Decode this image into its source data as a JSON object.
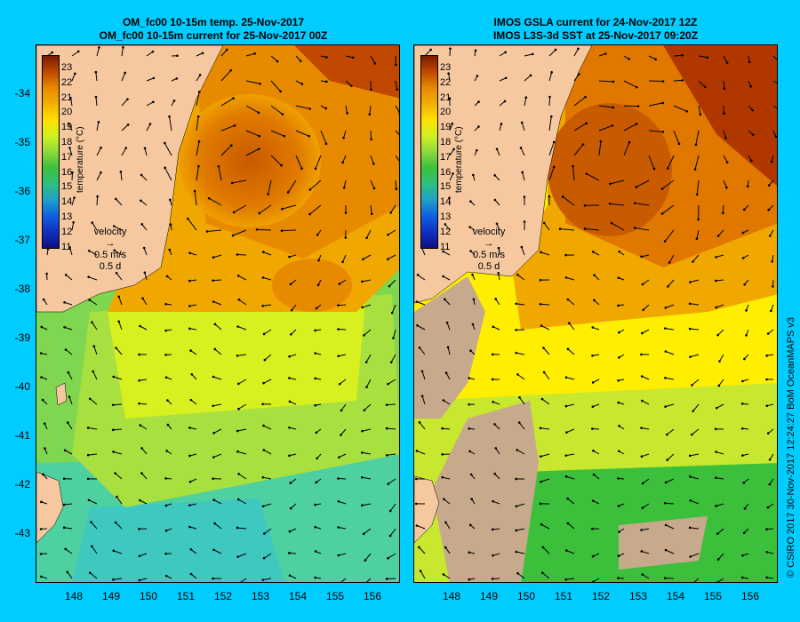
{
  "left_panel": {
    "title_line1": "OM_fc00 10-15m temp. 25-Nov-2017",
    "title_line2": "OM_fc00 10-15m current for 25-Nov-2017 00Z"
  },
  "right_panel": {
    "title_line1": "IMOS GSLA current for 24-Nov-2017 12Z",
    "title_line2": "IMOS L3S-3d SST at 25-Nov-2017 09:20Z"
  },
  "latitude_labels": [
    "-34",
    "-35",
    "-36",
    "-37",
    "-38",
    "-39",
    "-40",
    "-41",
    "-42",
    "-43"
  ],
  "longitude_labels": [
    "148",
    "149",
    "150",
    "151",
    "152",
    "153",
    "154",
    "155",
    "156"
  ],
  "colorbar": {
    "title": "temperature (°C)",
    "ticks": [
      "23",
      "22",
      "21",
      "20",
      "19",
      "18",
      "17",
      "16",
      "15",
      "14",
      "13",
      "12",
      "11"
    ]
  },
  "velocity_key": {
    "label": "velocity",
    "speed": "0.5 m/s",
    "duration": "0.5 d"
  },
  "credit": "© CSIRO 2017   30-Nov-2017 12:24:27 BoM OceanMAPS v3",
  "colors": {
    "background": "#00ccff",
    "land": "#f5c8a0",
    "cloud_mask": "#c7a98b",
    "warm": "#e07b00",
    "mid": "#ffd700",
    "cool": "#22bb22"
  }
}
